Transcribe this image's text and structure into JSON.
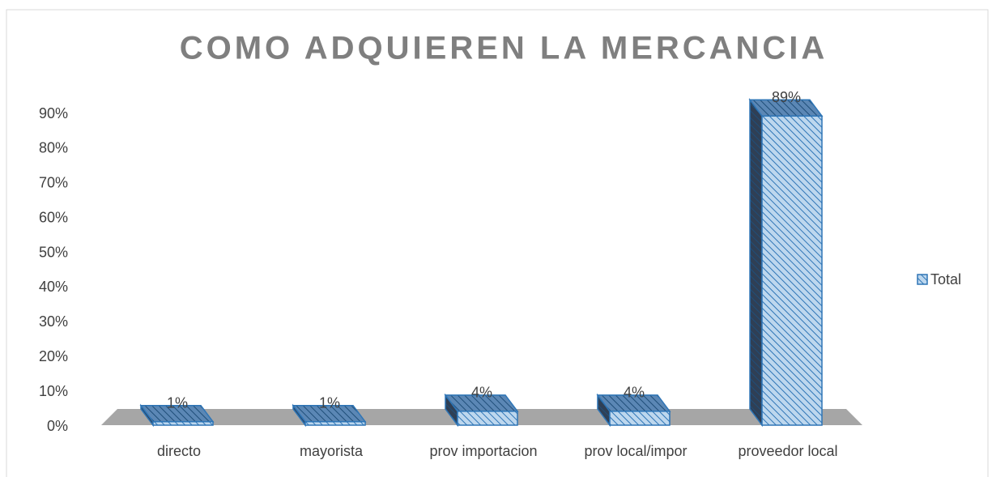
{
  "chart_data": {
    "type": "bar3d",
    "title": "COMO ADQUIEREN LA MERCANCIA",
    "categories": [
      "directo",
      "mayorista",
      "prov importacion",
      "prov local/impor",
      "proveedor local"
    ],
    "series": [
      {
        "name": "Total",
        "color": "#2e75b6",
        "values": [
          1,
          1,
          4,
          4,
          89
        ],
        "value_labels": [
          "1%",
          "1%",
          "4%",
          "4%",
          "89%"
        ]
      }
    ],
    "ylim": [
      0,
      90
    ],
    "yticks": [
      {
        "value": 0,
        "label": "0%"
      },
      {
        "value": 10,
        "label": "10%"
      },
      {
        "value": 20,
        "label": "20%"
      },
      {
        "value": 30,
        "label": "30%"
      },
      {
        "value": 40,
        "label": "40%"
      },
      {
        "value": 50,
        "label": "50%"
      },
      {
        "value": 60,
        "label": "60%"
      },
      {
        "value": 70,
        "label": "70%"
      },
      {
        "value": 80,
        "label": "80%"
      },
      {
        "value": 90,
        "label": "90%"
      }
    ],
    "legend": "right"
  }
}
